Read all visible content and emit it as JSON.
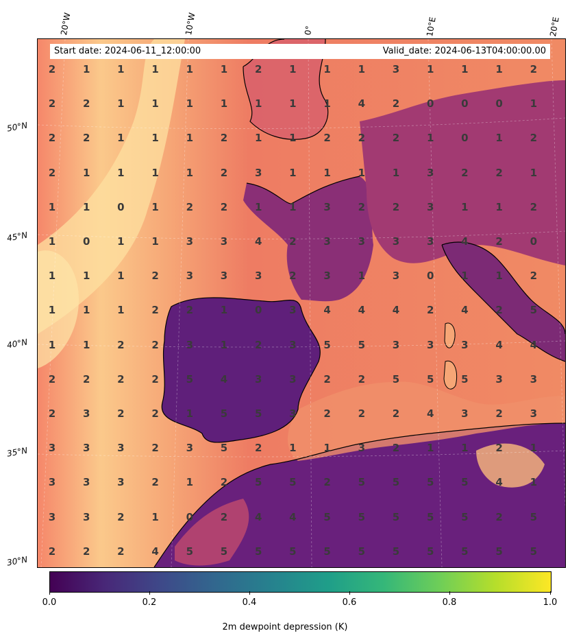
{
  "map": {
    "start_date": "Start date: 2024-06-11_12:00:00",
    "valid_date": "Valid_date: 2024-06-13T04:00:00.00",
    "lon_labels": [
      "20°W",
      "10°W",
      "0°",
      "10°E",
      "20°E"
    ],
    "lat_labels": [
      "50°N",
      "45°N",
      "40°N",
      "35°N",
      "30°N"
    ],
    "grid_values": [
      [
        2,
        1,
        1,
        1,
        1,
        1,
        2,
        1,
        1,
        1,
        3,
        1,
        1,
        1,
        2
      ],
      [
        2,
        2,
        1,
        1,
        1,
        1,
        1,
        1,
        1,
        4,
        2,
        0,
        0,
        0,
        1
      ],
      [
        2,
        2,
        1,
        1,
        1,
        2,
        1,
        1,
        2,
        2,
        2,
        1,
        0,
        1,
        2
      ],
      [
        2,
        1,
        1,
        1,
        1,
        2,
        3,
        1,
        1,
        1,
        1,
        3,
        2,
        2,
        1
      ],
      [
        1,
        1,
        0,
        1,
        2,
        2,
        1,
        1,
        3,
        2,
        2,
        3,
        1,
        1,
        2
      ],
      [
        1,
        0,
        1,
        1,
        3,
        3,
        4,
        2,
        3,
        3,
        3,
        3,
        4,
        2,
        0
      ],
      [
        1,
        1,
        1,
        2,
        3,
        3,
        3,
        2,
        3,
        1,
        3,
        0,
        1,
        1,
        2
      ],
      [
        1,
        1,
        1,
        2,
        2,
        1,
        0,
        3,
        4,
        4,
        4,
        2,
        4,
        2,
        5
      ],
      [
        1,
        1,
        2,
        2,
        3,
        1,
        2,
        3,
        5,
        5,
        3,
        3,
        3,
        4,
        4
      ],
      [
        2,
        2,
        2,
        2,
        5,
        4,
        3,
        3,
        2,
        2,
        5,
        5,
        5,
        3,
        3
      ],
      [
        2,
        3,
        2,
        2,
        1,
        5,
        5,
        3,
        2,
        2,
        2,
        4,
        3,
        2,
        3
      ],
      [
        3,
        3,
        3,
        2,
        3,
        5,
        2,
        1,
        1,
        3,
        2,
        1,
        1,
        2,
        1
      ],
      [
        3,
        3,
        3,
        2,
        1,
        2,
        5,
        5,
        2,
        5,
        5,
        5,
        5,
        4,
        1
      ],
      [
        3,
        3,
        2,
        1,
        0,
        2,
        4,
        4,
        5,
        5,
        5,
        5,
        5,
        2,
        5
      ],
      [
        2,
        2,
        2,
        4,
        5,
        5,
        5,
        5,
        5,
        5,
        5,
        5,
        5,
        5,
        5
      ]
    ]
  },
  "colorbar": {
    "ticks": [
      "0.0",
      "0.2",
      "0.4",
      "0.6",
      "0.8",
      "1.0"
    ],
    "label": "2m dewpoint depression (K)",
    "colormap": [
      "#440154",
      "#3e4989",
      "#26828e",
      "#35b779",
      "#b5de2b",
      "#fde725"
    ]
  },
  "colors": {
    "ocean_light": "#fbd08f",
    "ocean_mid": "#f28a64",
    "land_dark": "#5d1e7a",
    "land_mid": "#b23a6e",
    "coast": "#000000"
  }
}
